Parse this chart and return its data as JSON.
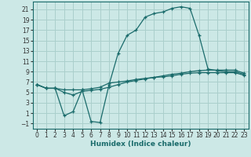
{
  "xlabel": "Humidex (Indice chaleur)",
  "ylabel": "",
  "background_color": "#cce8e6",
  "grid_color": "#aacfcc",
  "line_color": "#1a6b6b",
  "xlim": [
    -0.5,
    23.5
  ],
  "ylim": [
    -2,
    22.5
  ],
  "xticks": [
    0,
    1,
    2,
    3,
    4,
    5,
    6,
    7,
    8,
    9,
    10,
    11,
    12,
    13,
    14,
    15,
    16,
    17,
    18,
    19,
    20,
    21,
    22,
    23
  ],
  "yticks": [
    -1,
    1,
    3,
    5,
    7,
    9,
    11,
    13,
    15,
    17,
    19,
    21
  ],
  "line1_x": [
    0,
    1,
    2,
    3,
    4,
    5,
    6,
    7,
    8,
    9,
    10,
    11,
    12,
    13,
    14,
    15,
    16,
    17,
    18,
    19,
    20,
    21,
    22,
    23
  ],
  "line1_y": [
    6.5,
    5.8,
    5.8,
    0.5,
    1.3,
    5.5,
    -0.6,
    -0.8,
    6.5,
    12.5,
    16.0,
    17.0,
    19.5,
    20.2,
    20.5,
    21.2,
    21.5,
    21.2,
    16.0,
    9.5,
    9.2,
    9.0,
    9.0,
    8.5
  ],
  "line2_x": [
    0,
    1,
    2,
    3,
    4,
    5,
    6,
    7,
    8,
    9,
    10,
    11,
    12,
    13,
    14,
    15,
    16,
    17,
    18,
    19,
    20,
    21,
    22,
    23
  ],
  "line2_y": [
    6.5,
    5.8,
    5.8,
    5.5,
    5.5,
    5.5,
    5.7,
    6.0,
    6.8,
    7.0,
    7.2,
    7.5,
    7.7,
    7.9,
    8.2,
    8.5,
    8.7,
    9.0,
    9.2,
    9.3,
    9.3,
    9.3,
    9.3,
    8.7
  ],
  "line3_x": [
    0,
    1,
    2,
    3,
    4,
    5,
    6,
    7,
    8,
    9,
    10,
    11,
    12,
    13,
    14,
    15,
    16,
    17,
    18,
    19,
    20,
    21,
    22,
    23
  ],
  "line3_y": [
    6.5,
    5.8,
    5.8,
    5.0,
    4.5,
    5.2,
    5.4,
    5.6,
    6.0,
    6.5,
    7.0,
    7.3,
    7.6,
    7.9,
    8.0,
    8.2,
    8.5,
    8.7,
    8.8,
    8.8,
    8.8,
    8.8,
    8.8,
    8.3
  ],
  "tick_fontsize": 5.5,
  "xlabel_fontsize": 6.5
}
